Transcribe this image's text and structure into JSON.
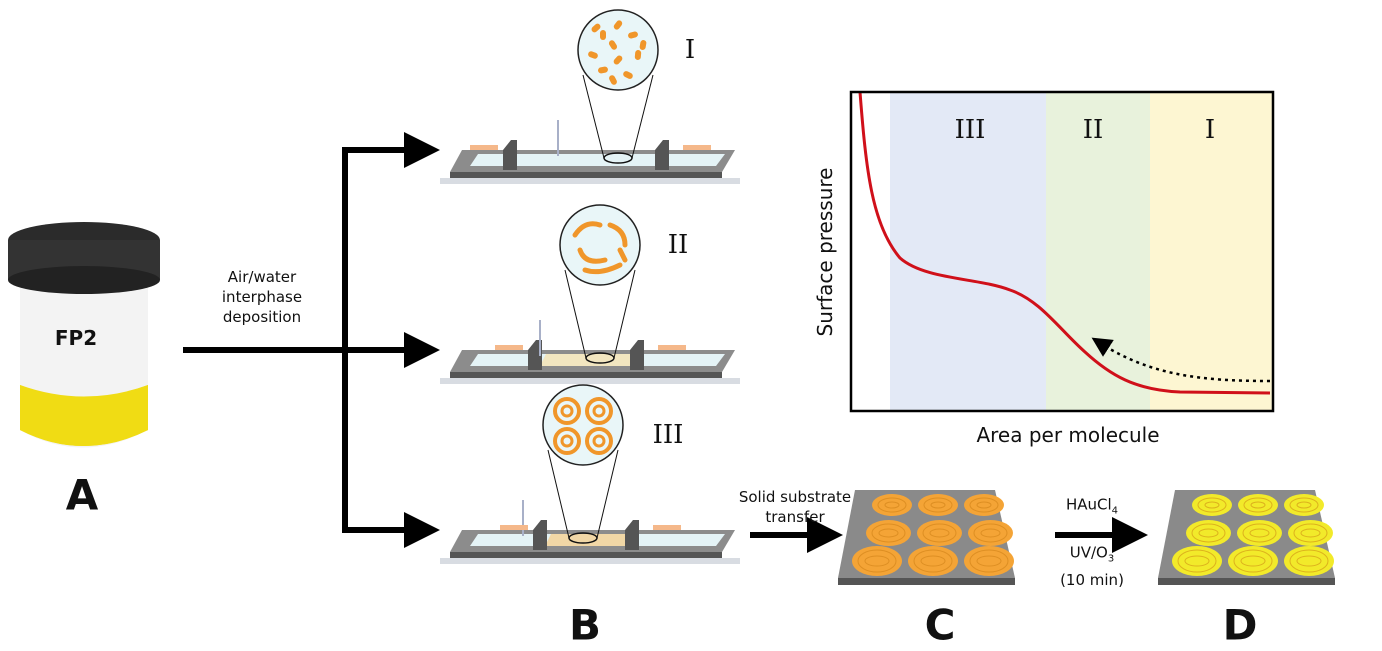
{
  "panels": {
    "a": "A",
    "b": "B",
    "c": "C",
    "d": "D"
  },
  "jar": {
    "label": "FP2",
    "lid_color": "#2b2b2b",
    "fill_color": "#f0dc14"
  },
  "deposition": {
    "line1": "Air/water",
    "line2": "interphase",
    "line3": "deposition"
  },
  "stages": [
    {
      "label": "I",
      "particle_color": "#f0962a"
    },
    {
      "label": "II",
      "particle_color": "#f0962a"
    },
    {
      "label": "III",
      "particle_color": "#f0962a"
    }
  ],
  "transfer": {
    "line1": "Solid substrate",
    "line2": "transfer"
  },
  "reaction": {
    "reagent": "HAuCl",
    "reagent_sub": "4",
    "condition": "UV/O",
    "condition_sub": "3",
    "time": "(10 min)"
  },
  "chart": {
    "ylabel": "Surface pressure",
    "xlabel": "Area per molecule",
    "regions": [
      {
        "label": "III",
        "color": "#e3e9f6"
      },
      {
        "label": "II",
        "color": "#e8f2dc"
      },
      {
        "label": "I",
        "color": "#fdf6d2"
      }
    ],
    "curve_color": "#d0101a"
  },
  "colors": {
    "film": "#f4a436",
    "gold": "#f2ea2a",
    "substrate": "#8a8a8a"
  }
}
